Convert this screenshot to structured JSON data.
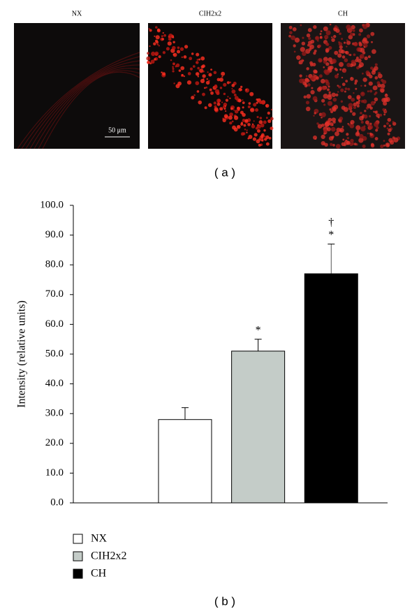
{
  "panel_a": {
    "images": [
      "NX",
      "CIH2x2",
      "CH"
    ],
    "scale_bar": "50 μm",
    "caption": "( a )"
  },
  "chart_data": {
    "type": "bar",
    "caption": "( b )",
    "y_label": "Intensity (relative units)",
    "ylim": [
      0,
      100
    ],
    "yticks": [
      {
        "value": 0,
        "label": "0.0"
      },
      {
        "value": 10,
        "label": "10.0"
      },
      {
        "value": 20,
        "label": "20.0"
      },
      {
        "value": 30,
        "label": "30.0"
      },
      {
        "value": 40,
        "label": "40.0"
      },
      {
        "value": 50,
        "label": "50.0"
      },
      {
        "value": 60,
        "label": "60.0"
      },
      {
        "value": 70,
        "label": "70.0"
      },
      {
        "value": 80,
        "label": "80.0"
      },
      {
        "value": 90,
        "label": "90.0"
      },
      {
        "value": 100,
        "label": "100.0"
      }
    ],
    "series": [
      {
        "name": "NX",
        "color": "#ffffff",
        "values": [
          28
        ],
        "errors": [
          4
        ],
        "annotations": []
      },
      {
        "name": "CIH2x2",
        "color": "#c4ccc8",
        "values": [
          51
        ],
        "errors": [
          4
        ],
        "annotations": [
          "*"
        ]
      },
      {
        "name": "CH",
        "color": "#000000",
        "values": [
          77
        ],
        "errors": [
          10
        ],
        "annotations": [
          "†",
          "*"
        ]
      }
    ]
  }
}
